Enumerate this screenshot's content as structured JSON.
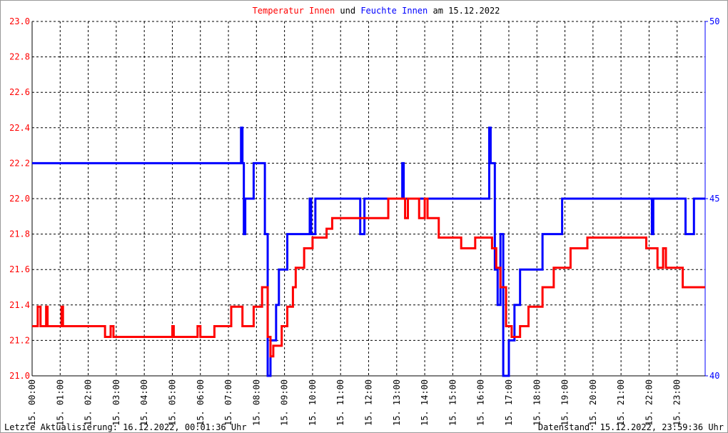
{
  "chart_data": {
    "type": "line",
    "title_joiner": "und",
    "title_suffix": "am 15.12.2022",
    "footer_left": "Letzte Aktualisierung: 16.12.2022, 00:01:36 Uhr",
    "footer_right": "Datenstand: 15.12.2022, 23:59:36 Uhr",
    "xlim": [
      0,
      24
    ],
    "xticks": [
      {
        "value": 0,
        "label": "15. 00:00"
      },
      {
        "value": 1,
        "label": "15. 01:00"
      },
      {
        "value": 2,
        "label": "15. 02:00"
      },
      {
        "value": 3,
        "label": "15. 03:00"
      },
      {
        "value": 4,
        "label": "15. 04:00"
      },
      {
        "value": 5,
        "label": "15. 05:00"
      },
      {
        "value": 6,
        "label": "15. 06:00"
      },
      {
        "value": 7,
        "label": "15. 07:00"
      },
      {
        "value": 8,
        "label": "15. 08:00"
      },
      {
        "value": 9,
        "label": "15. 09:00"
      },
      {
        "value": 10,
        "label": "15. 10:00"
      },
      {
        "value": 11,
        "label": "15. 11:00"
      },
      {
        "value": 12,
        "label": "15. 12:00"
      },
      {
        "value": 13,
        "label": "15. 13:00"
      },
      {
        "value": 14,
        "label": "15. 14:00"
      },
      {
        "value": 15,
        "label": "15. 15:00"
      },
      {
        "value": 16,
        "label": "15. 16:00"
      },
      {
        "value": 17,
        "label": "15. 17:00"
      },
      {
        "value": 18,
        "label": "15. 18:00"
      },
      {
        "value": 19,
        "label": "15. 19:00"
      },
      {
        "value": 20,
        "label": "15. 20:00"
      },
      {
        "value": 21,
        "label": "15. 21:00"
      },
      {
        "value": 22,
        "label": "15. 22:00"
      },
      {
        "value": 23,
        "label": "15. 23:00"
      }
    ],
    "ylim": [
      21.0,
      23.0
    ],
    "yticks": [
      {
        "value": 21,
        "label": "21.0"
      },
      21.2,
      21.4,
      21.6,
      21.8,
      {
        "value": 22,
        "label": "22.0"
      },
      22.2,
      22.4,
      22.6,
      22.8,
      {
        "value": 23,
        "label": "23.0"
      }
    ],
    "y2lim": [
      40,
      50
    ],
    "y2ticks": [
      40,
      45,
      50
    ],
    "grid": true,
    "series": [
      {
        "name": "Temperatur Innen",
        "color": "#ff0000",
        "x": [
          0,
          0.2,
          0.2,
          0.3,
          0.3,
          0.5,
          0.5,
          0.55,
          0.55,
          1.05,
          1.05,
          1.1,
          1.1,
          2.6,
          2.6,
          2.8,
          2.8,
          2.9,
          2.9,
          5.0,
          5.0,
          5.05,
          5.05,
          5.9,
          5.9,
          6.0,
          6.0,
          6.5,
          6.5,
          7.1,
          7.1,
          7.5,
          7.5,
          7.9,
          7.9,
          8.2,
          8.2,
          8.4,
          8.4,
          8.5,
          8.5,
          8.6,
          8.6,
          8.9,
          8.9,
          9.1,
          9.1,
          9.3,
          9.3,
          9.4,
          9.4,
          9.7,
          9.7,
          10.0,
          10.0,
          10.5,
          10.5,
          10.7,
          10.7,
          12.7,
          12.7,
          13.3,
          13.3,
          13.4,
          13.4,
          13.8,
          13.8,
          14.0,
          14.0,
          14.1,
          14.1,
          14.5,
          14.5,
          15.3,
          15.3,
          15.8,
          15.8,
          16.4,
          16.4,
          16.55,
          16.55,
          16.7,
          16.7,
          16.9,
          16.9,
          17.1,
          17.1,
          17.4,
          17.4,
          17.7,
          17.7,
          18.2,
          18.2,
          18.6,
          18.6,
          19.2,
          19.2,
          19.8,
          19.8,
          21.9,
          21.9,
          22.3,
          22.3,
          22.5,
          22.5,
          22.6,
          22.6,
          23.2,
          23.2,
          24
        ],
        "values": [
          21.28,
          21.28,
          21.39,
          21.39,
          21.28,
          21.28,
          21.39,
          21.39,
          21.28,
          21.28,
          21.39,
          21.39,
          21.28,
          21.28,
          21.22,
          21.22,
          21.28,
          21.28,
          21.22,
          21.22,
          21.28,
          21.28,
          21.22,
          21.22,
          21.28,
          21.28,
          21.22,
          21.22,
          21.28,
          21.28,
          21.39,
          21.39,
          21.28,
          21.28,
          21.39,
          21.39,
          21.5,
          21.5,
          21.22,
          21.22,
          21.11,
          21.11,
          21.17,
          21.17,
          21.28,
          21.28,
          21.39,
          21.39,
          21.5,
          21.5,
          21.61,
          21.61,
          21.72,
          21.72,
          21.78,
          21.78,
          21.83,
          21.83,
          21.89,
          21.89,
          22.0,
          22.0,
          21.89,
          21.89,
          22.0,
          22.0,
          21.89,
          21.89,
          22.0,
          22.0,
          21.89,
          21.89,
          21.78,
          21.78,
          21.72,
          21.72,
          21.78,
          21.78,
          21.72,
          21.72,
          21.61,
          21.61,
          21.5,
          21.5,
          21.28,
          21.28,
          21.22,
          21.22,
          21.28,
          21.28,
          21.39,
          21.39,
          21.5,
          21.5,
          21.61,
          21.61,
          21.72,
          21.72,
          21.78,
          21.78,
          21.72,
          21.72,
          21.61,
          21.61,
          21.72,
          21.72,
          21.61,
          21.61,
          21.5,
          21.5
        ]
      },
      {
        "name": "Feuchte Innen",
        "color": "#0000ff",
        "axis": "y2",
        "x": [
          0,
          7.45,
          7.45,
          7.5,
          7.5,
          7.55,
          7.55,
          7.6,
          7.6,
          7.9,
          7.9,
          8.3,
          8.3,
          8.4,
          8.4,
          8.5,
          8.5,
          8.7,
          8.7,
          8.8,
          8.8,
          9.1,
          9.1,
          9.9,
          9.9,
          9.95,
          9.95,
          10.1,
          10.1,
          11.7,
          11.7,
          11.85,
          11.85,
          13.2,
          13.2,
          13.25,
          13.25,
          16.3,
          16.3,
          16.35,
          16.35,
          16.5,
          16.5,
          16.6,
          16.6,
          16.7,
          16.7,
          16.8,
          16.8,
          17.0,
          17.0,
          17.2,
          17.2,
          17.4,
          17.4,
          18.2,
          18.2,
          18.9,
          18.9,
          22.1,
          22.1,
          22.15,
          22.15,
          23.3,
          23.3,
          23.6,
          23.6,
          24
        ],
        "values": [
          46,
          46,
          47,
          47,
          46,
          46,
          44,
          44,
          45,
          45,
          46,
          46,
          44,
          44,
          40,
          40,
          41,
          41,
          42,
          42,
          43,
          43,
          44,
          44,
          45,
          45,
          44,
          44,
          45,
          45,
          44,
          44,
          45,
          45,
          46,
          46,
          45,
          45,
          47,
          47,
          46,
          46,
          43,
          43,
          42,
          42,
          44,
          44,
          40,
          40,
          41,
          41,
          42,
          42,
          43,
          43,
          44,
          44,
          45,
          45,
          44,
          44,
          45,
          45,
          44,
          44,
          45,
          45
        ]
      }
    ]
  }
}
